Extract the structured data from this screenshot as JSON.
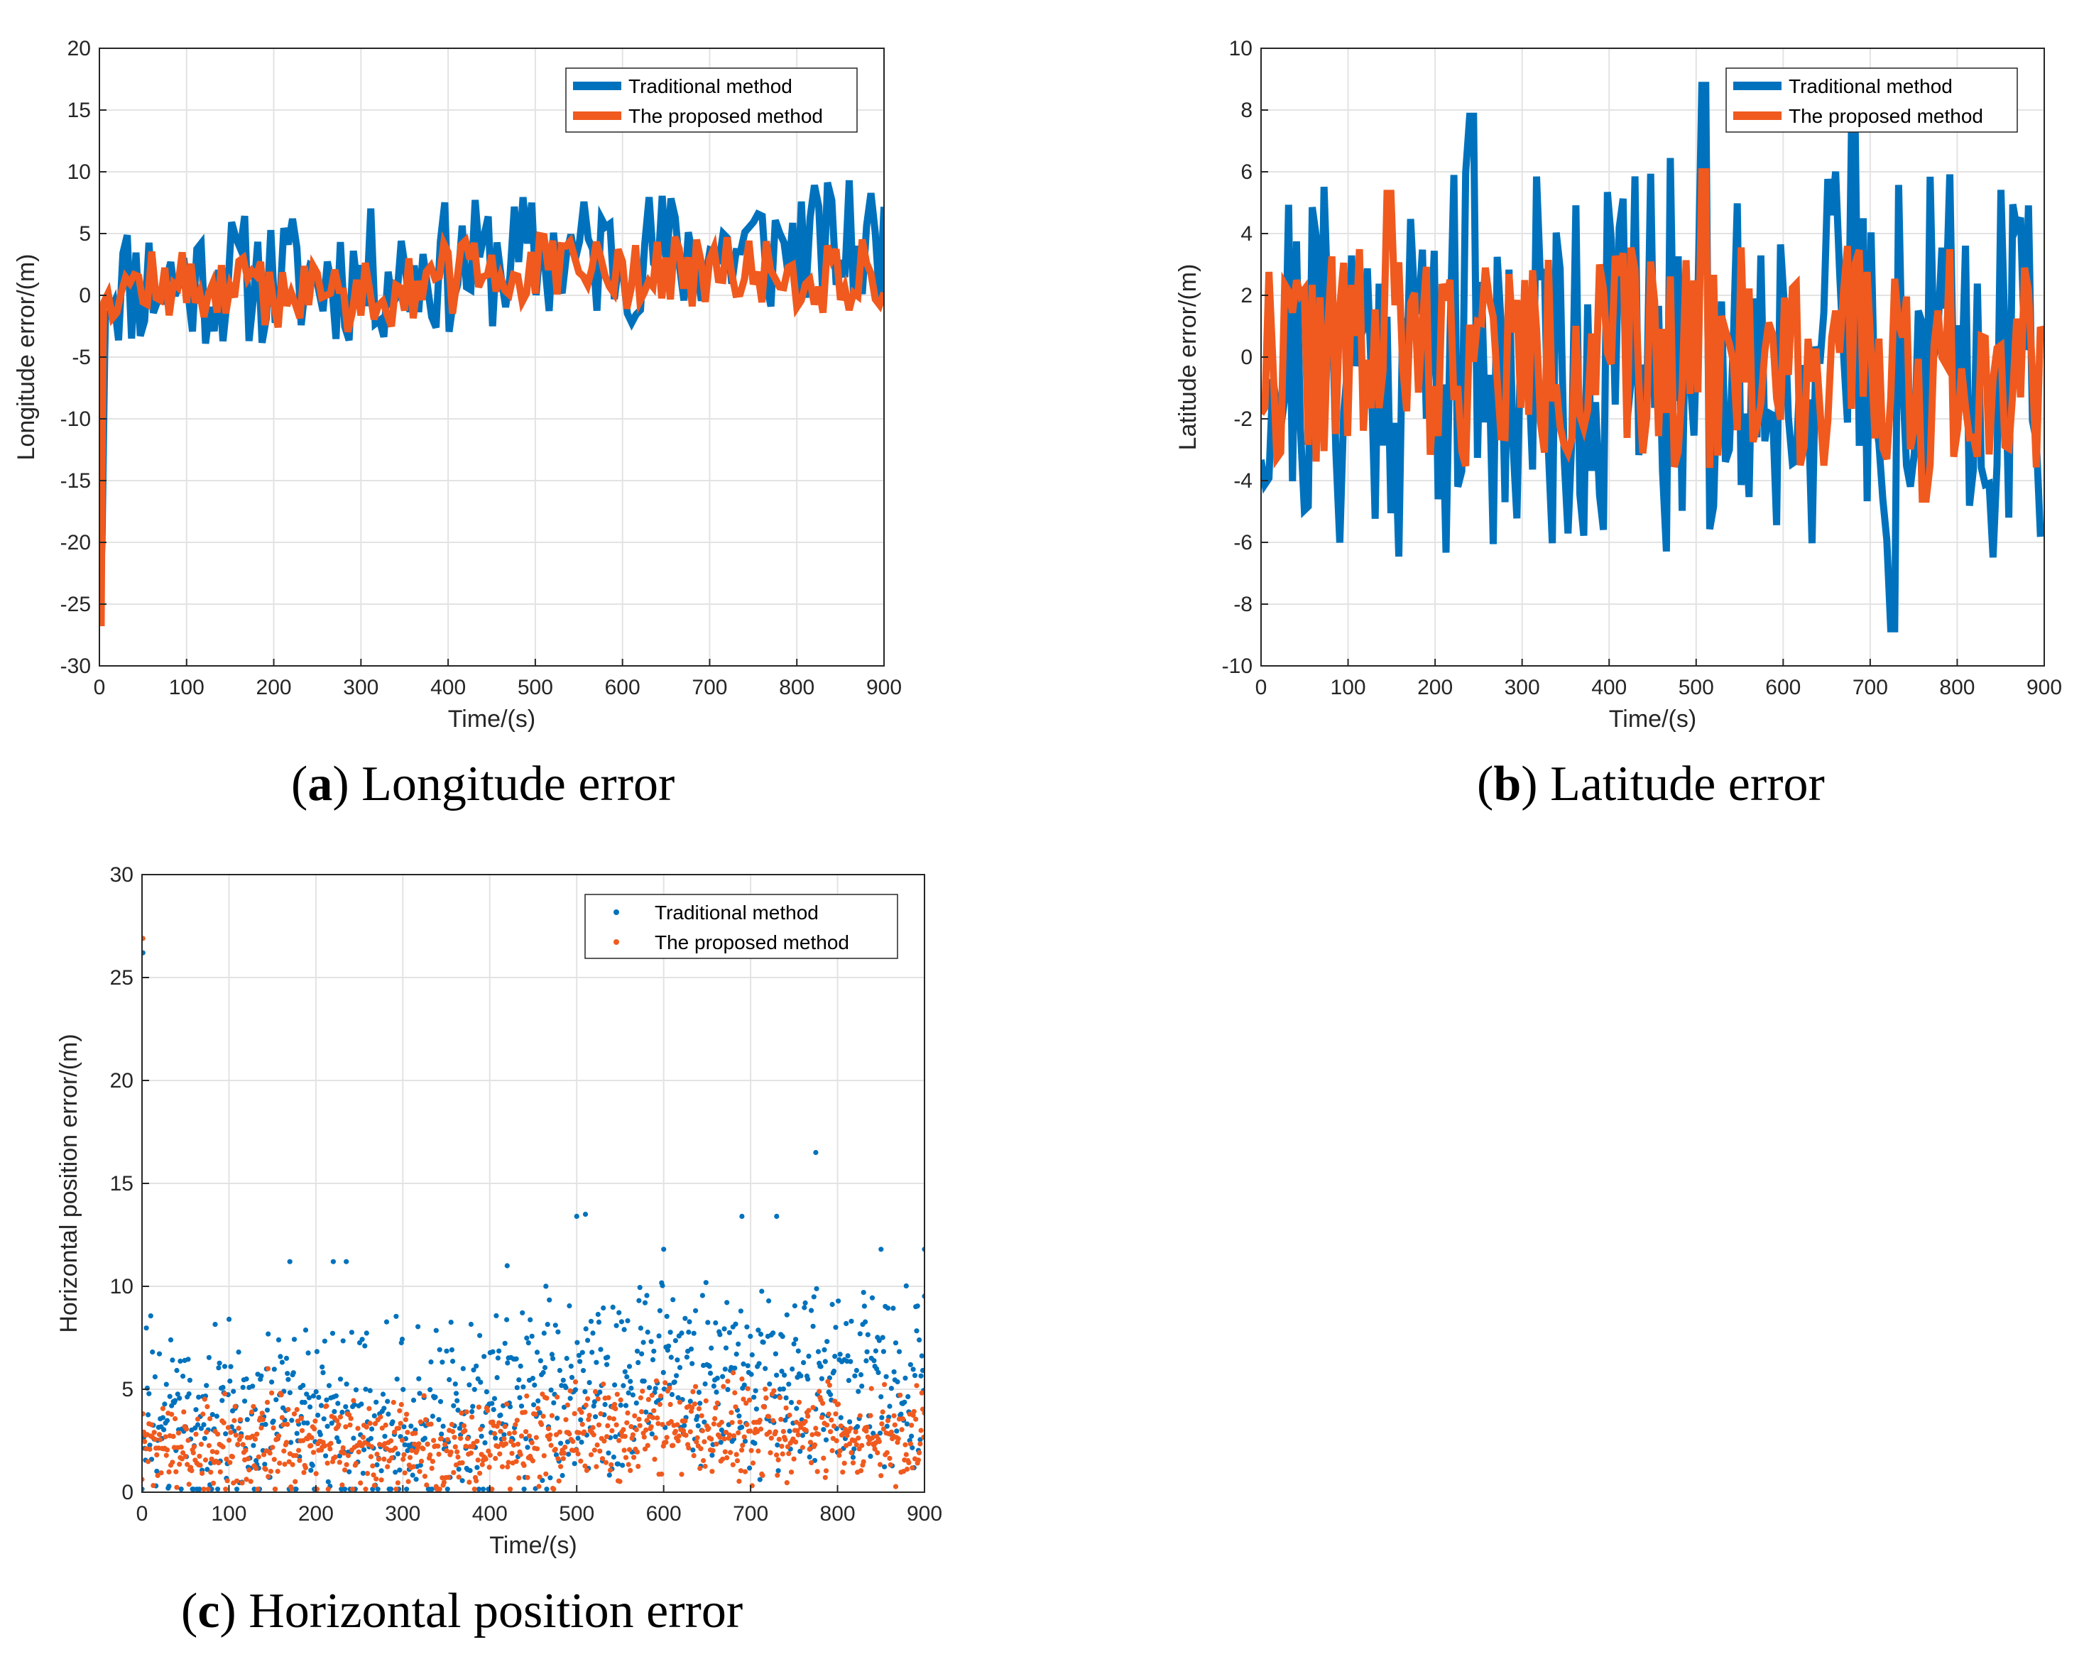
{
  "chart_data": [
    {
      "id": "a",
      "type": "line",
      "caption_letter": "a",
      "caption_text": " Longitude error",
      "xlabel": "Time/(s)",
      "ylabel": "Longitude error/(m)",
      "xlim": [
        0,
        900
      ],
      "ylim": [
        -30,
        20
      ],
      "xticks": [
        0,
        100,
        200,
        300,
        400,
        500,
        600,
        700,
        800,
        900
      ],
      "yticks": [
        -30,
        -25,
        -20,
        -15,
        -10,
        -5,
        0,
        5,
        10,
        15,
        20
      ],
      "grid": true,
      "legend": "top-right",
      "series": [
        {
          "name": "Traditional method",
          "color": "#0072BD",
          "width": 10,
          "style": "line",
          "gen": {
            "seed": 11,
            "n": 180,
            "base": [
              [
                0,
                1
              ],
              [
                300,
                1.5
              ],
              [
                500,
                3
              ],
              [
                900,
                4
              ]
            ],
            "amp": 5.5,
            "start": [
              [
                0,
                -25
              ],
              [
                3,
                -20
              ],
              [
                6,
                -5
              ]
            ]
          }
        },
        {
          "name": "The proposed method",
          "color": "#F05A1E",
          "width": 10,
          "style": "line",
          "gen": {
            "seed": 12,
            "n": 180,
            "base": [
              [
                0,
                1
              ],
              [
                300,
                0
              ],
              [
                450,
                2
              ],
              [
                900,
                1.5
              ]
            ],
            "amp": 3,
            "start": [
              [
                0,
                -26.5
              ],
              [
                2,
                -26.5
              ],
              [
                4,
                -5
              ]
            ]
          }
        }
      ]
    },
    {
      "id": "b",
      "type": "line",
      "caption_letter": "b",
      "caption_text": " Latitude error",
      "xlabel": "Time/(s)",
      "ylabel": "Latitude  error/(m)",
      "xlim": [
        0,
        900
      ],
      "ylim": [
        -10,
        10
      ],
      "xticks": [
        0,
        100,
        200,
        300,
        400,
        500,
        600,
        700,
        800,
        900
      ],
      "yticks": [
        -10,
        -8,
        -6,
        -4,
        -2,
        0,
        2,
        4,
        6,
        8,
        10
      ],
      "grid": true,
      "legend": "top-right",
      "series": [
        {
          "name": "Traditional method",
          "color": "#0072BD",
          "width": 10,
          "style": "line",
          "gen": {
            "seed": 21,
            "n": 200,
            "base": [
              [
                0,
                0
              ],
              [
                900,
                0
              ]
            ],
            "amp": 6.5,
            "peaks": [
              [
                508,
                8.8
              ],
              [
                727,
                -8.8
              ],
              [
                243,
                7.8
              ],
              [
                680,
                7.2
              ]
            ]
          }
        },
        {
          "name": "The proposed method",
          "color": "#F05A1E",
          "width": 10,
          "style": "line",
          "gen": {
            "seed": 22,
            "n": 200,
            "base": [
              [
                0,
                0
              ],
              [
                900,
                0
              ]
            ],
            "amp": 3.6,
            "peaks": [
              [
                508,
                6
              ],
              [
                760,
                -4.6
              ],
              [
                145,
                5.3
              ]
            ]
          }
        }
      ]
    },
    {
      "id": "c",
      "type": "scatter",
      "caption_letter": "c",
      "caption_text": " Horizontal position error",
      "xlabel": "Time/(s)",
      "ylabel": "Horizontal position error/(m)",
      "xlim": [
        0,
        900
      ],
      "ylim": [
        0,
        30
      ],
      "xticks": [
        0,
        100,
        200,
        300,
        400,
        500,
        600,
        700,
        800,
        900
      ],
      "yticks": [
        0,
        5,
        10,
        15,
        20,
        25,
        30
      ],
      "grid": true,
      "legend": "top-right",
      "series": [
        {
          "name": "Traditional method",
          "color": "#0072BD",
          "style": "scatter",
          "first": [
            [
              1,
              26.2
            ]
          ],
          "extras": [
            [
              775,
              16.5
            ],
            [
              500,
              13.4
            ],
            [
              510,
              13.5
            ],
            [
              690,
              13.4
            ],
            [
              730,
              13.4
            ],
            [
              220,
              11.2
            ],
            [
              235,
              11.2
            ],
            [
              170,
              11.2
            ],
            [
              850,
              11.8
            ],
            [
              900,
              11.8
            ],
            [
              420,
              11.0
            ],
            [
              600,
              11.8
            ]
          ],
          "gen": {
            "seed": 31,
            "n": 900,
            "base": [
              [
                0,
                3.5
              ],
              [
                350,
                3.5
              ],
              [
                500,
                5.5
              ],
              [
                900,
                5.5
              ]
            ],
            "amp": 4.5
          }
        },
        {
          "name": "The proposed method",
          "color": "#F05A1E",
          "style": "scatter",
          "first": [
            [
              1,
              26.9
            ]
          ],
          "extras": [
            [
              145,
              6.0
            ],
            [
              680,
              5.8
            ],
            [
              690,
              5.5
            ]
          ],
          "gen": {
            "seed": 32,
            "n": 900,
            "base": [
              [
                0,
                2.2
              ],
              [
                450,
                2.2
              ],
              [
                500,
                3.0
              ],
              [
                900,
                2.6
              ]
            ],
            "amp": 2.3
          }
        }
      ]
    }
  ]
}
